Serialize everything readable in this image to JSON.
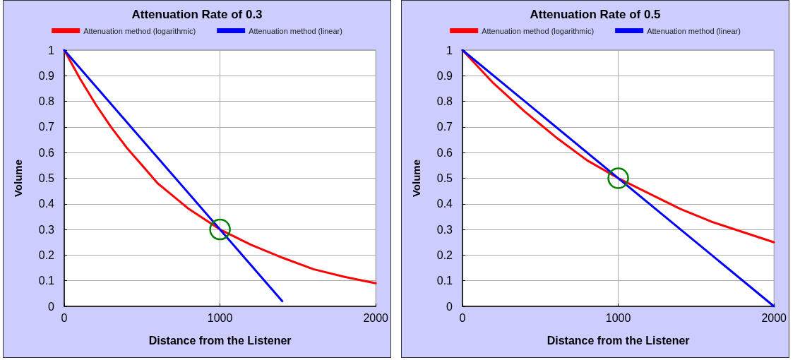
{
  "chart_data": [
    {
      "type": "line",
      "title": "Attenuation Rate of 0.3",
      "xlabel": "Distance from the Listener",
      "ylabel": "Volume",
      "xlim": [
        0,
        2000
      ],
      "ylim": [
        0,
        1
      ],
      "xticks": [
        0,
        1000,
        2000
      ],
      "yticks": [
        0,
        0.1,
        0.2,
        0.3,
        0.4,
        0.5,
        0.6,
        0.7,
        0.8,
        0.9,
        1
      ],
      "grid": true,
      "legend": "top",
      "marker": "none",
      "line_style": "solid",
      "series": [
        {
          "name": "Attenuation method (logarithmic)",
          "color": "#ff0000",
          "x": [
            0,
            100,
            200,
            300,
            400,
            500,
            600,
            700,
            800,
            900,
            1000,
            1200,
            1400,
            1600,
            1800,
            2000
          ],
          "values": [
            1.0,
            0.89,
            0.79,
            0.7,
            0.62,
            0.55,
            0.48,
            0.43,
            0.38,
            0.34,
            0.3,
            0.24,
            0.19,
            0.145,
            0.115,
            0.09
          ]
        },
        {
          "name": "Attenuation method (linear)",
          "color": "#0000ff",
          "x": [
            0,
            1400
          ],
          "values": [
            1.0,
            0.02
          ]
        }
      ]
    },
    {
      "type": "line",
      "title": "Attenuation Rate of 0.5",
      "xlabel": "Distance from the Listener",
      "ylabel": "Volume",
      "xlim": [
        0,
        2000
      ],
      "ylim": [
        0,
        1
      ],
      "xticks": [
        0,
        1000,
        2000
      ],
      "yticks": [
        0,
        0.1,
        0.2,
        0.3,
        0.4,
        0.5,
        0.6,
        0.7,
        0.8,
        0.9,
        1
      ],
      "grid": true,
      "legend": "top",
      "marker": "none",
      "line_style": "solid",
      "series": [
        {
          "name": "Attenuation method (logarithmic)",
          "color": "#ff0000",
          "x": [
            0,
            200,
            400,
            600,
            800,
            1000,
            1200,
            1400,
            1600,
            1800,
            2000
          ],
          "values": [
            1.0,
            0.87,
            0.76,
            0.66,
            0.57,
            0.5,
            0.44,
            0.38,
            0.33,
            0.29,
            0.25
          ]
        },
        {
          "name": "Attenuation method (linear)",
          "color": "#0000ff",
          "x": [
            0,
            2000
          ],
          "values": [
            1.0,
            0.0
          ]
        }
      ]
    }
  ]
}
